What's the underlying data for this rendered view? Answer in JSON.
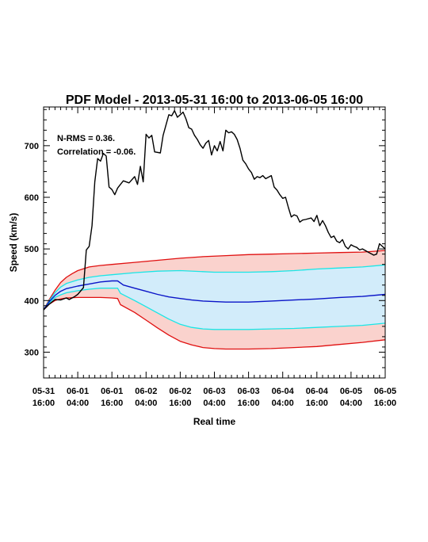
{
  "chart_data": {
    "type": "line",
    "title": "PDF Model - 2013-05-31 16:00 to 2013-06-05 16:00",
    "xlabel": "Real time",
    "ylabel": "Speed (km/s)",
    "xlim": [
      "2013-05-31 16:00",
      "2013-06-05 16:00"
    ],
    "ylim": [
      250,
      775
    ],
    "x_ticks": [
      {
        "t": "2013-05-31 16:00",
        "line1": "05-31",
        "line2": "16:00"
      },
      {
        "t": "2013-06-01 04:00",
        "line1": "06-01",
        "line2": "04:00"
      },
      {
        "t": "2013-06-01 16:00",
        "line1": "06-01",
        "line2": "16:00"
      },
      {
        "t": "2013-06-02 04:00",
        "line1": "06-02",
        "line2": "04:00"
      },
      {
        "t": "2013-06-02 16:00",
        "line1": "06-02",
        "line2": "16:00"
      },
      {
        "t": "2013-06-03 04:00",
        "line1": "06-03",
        "line2": "04:00"
      },
      {
        "t": "2013-06-03 16:00",
        "line1": "06-03",
        "line2": "16:00"
      },
      {
        "t": "2013-06-04 04:00",
        "line1": "06-04",
        "line2": "04:00"
      },
      {
        "t": "2013-06-04 16:00",
        "line1": "06-04",
        "line2": "16:00"
      },
      {
        "t": "2013-06-05 04:00",
        "line1": "06-05",
        "line2": "04:00"
      },
      {
        "t": "2013-06-05 16:00",
        "line1": "06-05",
        "line2": "16:00"
      }
    ],
    "y_ticks": [
      300,
      400,
      500,
      600,
      700
    ],
    "annotations": [
      "N-RMS = 0.36.",
      "Correlation = -0.06."
    ],
    "grid": false,
    "legend": "none",
    "colors": {
      "observed": "#000000",
      "median": "#0a14c8",
      "inner_band_line": "#19e6e6",
      "inner_band_fill": "#d2ecfa",
      "outer_band_line": "#e01010",
      "outer_band_fill": "#fad2cd"
    },
    "series": [
      {
        "key": "observed",
        "points": [
          [
            "2013-05-31 16:00",
            382
          ],
          [
            "2013-05-31 18:00",
            393
          ],
          [
            "2013-05-31 20:00",
            402
          ],
          [
            "2013-05-31 22:00",
            401
          ],
          [
            "2013-06-01 00:00",
            405
          ],
          [
            "2013-06-01 01:00",
            402
          ],
          [
            "2013-06-01 03:00",
            408
          ],
          [
            "2013-06-01 04:00",
            412
          ],
          [
            "2013-06-01 06:00",
            425
          ],
          [
            "2013-06-01 07:00",
            498
          ],
          [
            "2013-06-01 08:00",
            505
          ],
          [
            "2013-06-01 09:00",
            545
          ],
          [
            "2013-06-01 10:00",
            630
          ],
          [
            "2013-06-01 11:00",
            675
          ],
          [
            "2013-06-01 12:00",
            670
          ],
          [
            "2013-06-01 13:00",
            685
          ],
          [
            "2013-06-01 14:00",
            680
          ],
          [
            "2013-06-01 15:00",
            620
          ],
          [
            "2013-06-01 16:00",
            615
          ],
          [
            "2013-06-01 17:00",
            605
          ],
          [
            "2013-06-01 18:00",
            618
          ],
          [
            "2013-06-01 19:00",
            625
          ],
          [
            "2013-06-01 20:00",
            632
          ],
          [
            "2013-06-01 22:00",
            628
          ],
          [
            "2013-06-02 00:00",
            640
          ],
          [
            "2013-06-02 01:00",
            625
          ],
          [
            "2013-06-02 02:00",
            660
          ],
          [
            "2013-06-02 03:00",
            630
          ],
          [
            "2013-06-02 04:00",
            722
          ],
          [
            "2013-06-02 05:00",
            715
          ],
          [
            "2013-06-02 06:00",
            720
          ],
          [
            "2013-06-02 07:00",
            688
          ],
          [
            "2013-06-02 09:00",
            686
          ],
          [
            "2013-06-02 10:00",
            720
          ],
          [
            "2013-06-02 11:00",
            740
          ],
          [
            "2013-06-02 12:00",
            760
          ],
          [
            "2013-06-02 13:00",
            758
          ],
          [
            "2013-06-02 14:00",
            768
          ],
          [
            "2013-06-02 15:00",
            755
          ],
          [
            "2013-06-02 16:00",
            760
          ],
          [
            "2013-06-02 17:00",
            765
          ],
          [
            "2013-06-02 18:00",
            752
          ],
          [
            "2013-06-02 19:00",
            735
          ],
          [
            "2013-06-02 20:00",
            732
          ],
          [
            "2013-06-02 21:00",
            720
          ],
          [
            "2013-06-02 22:00",
            712
          ],
          [
            "2013-06-02 23:00",
            702
          ],
          [
            "2013-06-03 00:00",
            695
          ],
          [
            "2013-06-03 01:00",
            705
          ],
          [
            "2013-06-03 02:00",
            710
          ],
          [
            "2013-06-03 03:00",
            682
          ],
          [
            "2013-06-03 04:00",
            700
          ],
          [
            "2013-06-03 05:00",
            690
          ],
          [
            "2013-06-03 06:00",
            708
          ],
          [
            "2013-06-03 07:00",
            690
          ],
          [
            "2013-06-03 08:00",
            730
          ],
          [
            "2013-06-03 09:00",
            725
          ],
          [
            "2013-06-03 10:00",
            727
          ],
          [
            "2013-06-03 11:00",
            722
          ],
          [
            "2013-06-03 12:00",
            712
          ],
          [
            "2013-06-03 13:00",
            695
          ],
          [
            "2013-06-03 14:00",
            672
          ],
          [
            "2013-06-03 15:00",
            665
          ],
          [
            "2013-06-03 16:00",
            655
          ],
          [
            "2013-06-03 17:00",
            648
          ],
          [
            "2013-06-03 18:00",
            635
          ],
          [
            "2013-06-03 19:00",
            640
          ],
          [
            "2013-06-03 20:00",
            638
          ],
          [
            "2013-06-03 21:00",
            642
          ],
          [
            "2013-06-03 22:00",
            636
          ],
          [
            "2013-06-04 00:00",
            642
          ],
          [
            "2013-06-04 01:00",
            620
          ],
          [
            "2013-06-04 02:00",
            614
          ],
          [
            "2013-06-04 03:00",
            605
          ],
          [
            "2013-06-04 04:00",
            598
          ],
          [
            "2013-06-04 05:00",
            600
          ],
          [
            "2013-06-04 06:00",
            580
          ],
          [
            "2013-06-04 07:00",
            562
          ],
          [
            "2013-06-04 08:00",
            566
          ],
          [
            "2013-06-04 09:00",
            564
          ],
          [
            "2013-06-04 10:00",
            552
          ],
          [
            "2013-06-04 11:00",
            556
          ],
          [
            "2013-06-04 12:00",
            557
          ],
          [
            "2013-06-04 14:00",
            560
          ],
          [
            "2013-06-04 15:00",
            553
          ],
          [
            "2013-06-04 16:00",
            565
          ],
          [
            "2013-06-04 17:00",
            545
          ],
          [
            "2013-06-04 18:00",
            555
          ],
          [
            "2013-06-04 19:00",
            545
          ],
          [
            "2013-06-04 20:00",
            532
          ],
          [
            "2013-06-04 21:00",
            522
          ],
          [
            "2013-06-04 22:00",
            525
          ],
          [
            "2013-06-04 23:00",
            515
          ],
          [
            "2013-06-05 00:00",
            512
          ],
          [
            "2013-06-05 01:00",
            518
          ],
          [
            "2013-06-05 02:00",
            505
          ],
          [
            "2013-06-05 03:00",
            500
          ],
          [
            "2013-06-05 04:00",
            508
          ],
          [
            "2013-06-05 05:00",
            505
          ],
          [
            "2013-06-05 06:00",
            503
          ],
          [
            "2013-06-05 07:00",
            498
          ],
          [
            "2013-06-05 08:00",
            500
          ],
          [
            "2013-06-05 10:00",
            494
          ],
          [
            "2013-06-05 12:00",
            488
          ],
          [
            "2013-06-05 13:00",
            490
          ],
          [
            "2013-06-05 14:00",
            510
          ],
          [
            "2013-06-05 15:00",
            505
          ],
          [
            "2013-06-05 16:00",
            500
          ]
        ]
      },
      {
        "key": "median",
        "points": [
          [
            "2013-05-31 16:00",
            382
          ],
          [
            "2013-05-31 18:00",
            398
          ],
          [
            "2013-05-31 20:00",
            410
          ],
          [
            "2013-05-31 22:00",
            418
          ],
          [
            "2013-06-01 00:00",
            423
          ],
          [
            "2013-06-01 04:00",
            428
          ],
          [
            "2013-06-01 08:00",
            432
          ],
          [
            "2013-06-01 12:00",
            436
          ],
          [
            "2013-06-01 16:00",
            438
          ],
          [
            "2013-06-01 18:00",
            438
          ],
          [
            "2013-06-01 20:00",
            430
          ],
          [
            "2013-06-02 00:00",
            424
          ],
          [
            "2013-06-02 04:00",
            418
          ],
          [
            "2013-06-02 08:00",
            412
          ],
          [
            "2013-06-02 12:00",
            407
          ],
          [
            "2013-06-02 16:00",
            404
          ],
          [
            "2013-06-02 20:00",
            401
          ],
          [
            "2013-06-03 00:00",
            399
          ],
          [
            "2013-06-03 04:00",
            398
          ],
          [
            "2013-06-03 08:00",
            397
          ],
          [
            "2013-06-03 12:00",
            397
          ],
          [
            "2013-06-03 16:00",
            397
          ],
          [
            "2013-06-03 20:00",
            398
          ],
          [
            "2013-06-04 00:00",
            399
          ],
          [
            "2013-06-04 08:00",
            401
          ],
          [
            "2013-06-04 16:00",
            403
          ],
          [
            "2013-06-05 00:00",
            406
          ],
          [
            "2013-06-05 08:00",
            408
          ],
          [
            "2013-06-05 16:00",
            412
          ]
        ]
      },
      {
        "key": "inner_upper",
        "points": [
          [
            "2013-05-31 16:00",
            382
          ],
          [
            "2013-05-31 18:00",
            400
          ],
          [
            "2013-05-31 20:00",
            415
          ],
          [
            "2013-05-31 22:00",
            426
          ],
          [
            "2013-06-01 00:00",
            433
          ],
          [
            "2013-06-01 04:00",
            440
          ],
          [
            "2013-06-01 08:00",
            445
          ],
          [
            "2013-06-01 12:00",
            448
          ],
          [
            "2013-06-01 16:00",
            450
          ],
          [
            "2013-06-02 00:00",
            454
          ],
          [
            "2013-06-02 08:00",
            457
          ],
          [
            "2013-06-02 16:00",
            458
          ],
          [
            "2013-06-03 00:00",
            456
          ],
          [
            "2013-06-03 04:00",
            455
          ],
          [
            "2013-06-03 08:00",
            455
          ],
          [
            "2013-06-03 16:00",
            455
          ],
          [
            "2013-06-04 00:00",
            456
          ],
          [
            "2013-06-04 08:00",
            458
          ],
          [
            "2013-06-04 16:00",
            461
          ],
          [
            "2013-06-05 00:00",
            463
          ],
          [
            "2013-06-05 08:00",
            465
          ],
          [
            "2013-06-05 16:00",
            469
          ]
        ]
      },
      {
        "key": "inner_lower",
        "points": [
          [
            "2013-05-31 16:00",
            382
          ],
          [
            "2013-05-31 18:00",
            396
          ],
          [
            "2013-05-31 20:00",
            406
          ],
          [
            "2013-05-31 22:00",
            411
          ],
          [
            "2013-06-01 00:00",
            415
          ],
          [
            "2013-06-01 04:00",
            419
          ],
          [
            "2013-06-01 08:00",
            422
          ],
          [
            "2013-06-01 12:00",
            424
          ],
          [
            "2013-06-01 16:00",
            424
          ],
          [
            "2013-06-01 18:00",
            424
          ],
          [
            "2013-06-01 19:00",
            414
          ],
          [
            "2013-06-02 00:00",
            400
          ],
          [
            "2013-06-02 04:00",
            388
          ],
          [
            "2013-06-02 08:00",
            376
          ],
          [
            "2013-06-02 12:00",
            364
          ],
          [
            "2013-06-02 16:00",
            354
          ],
          [
            "2013-06-02 20:00",
            348
          ],
          [
            "2013-06-03 00:00",
            345
          ],
          [
            "2013-06-03 04:00",
            344
          ],
          [
            "2013-06-03 08:00",
            344
          ],
          [
            "2013-06-03 16:00",
            344
          ],
          [
            "2013-06-04 00:00",
            345
          ],
          [
            "2013-06-04 08:00",
            346
          ],
          [
            "2013-06-04 16:00",
            348
          ],
          [
            "2013-06-05 00:00",
            350
          ],
          [
            "2013-06-05 08:00",
            352
          ],
          [
            "2013-06-05 16:00",
            356
          ]
        ]
      },
      {
        "key": "outer_upper",
        "points": [
          [
            "2013-05-31 16:00",
            382
          ],
          [
            "2013-05-31 18:00",
            402
          ],
          [
            "2013-05-31 20:00",
            420
          ],
          [
            "2013-05-31 22:00",
            435
          ],
          [
            "2013-06-01 00:00",
            445
          ],
          [
            "2013-06-01 02:00",
            452
          ],
          [
            "2013-06-01 04:00",
            458
          ],
          [
            "2013-06-01 08:00",
            465
          ],
          [
            "2013-06-01 12:00",
            468
          ],
          [
            "2013-06-01 16:00",
            470
          ],
          [
            "2013-06-02 00:00",
            474
          ],
          [
            "2013-06-02 08:00",
            478
          ],
          [
            "2013-06-02 16:00",
            482
          ],
          [
            "2013-06-03 00:00",
            485
          ],
          [
            "2013-06-03 08:00",
            487
          ],
          [
            "2013-06-03 16:00",
            489
          ],
          [
            "2013-06-04 00:00",
            490
          ],
          [
            "2013-06-04 08:00",
            491
          ],
          [
            "2013-06-04 16:00",
            492
          ],
          [
            "2013-06-05 00:00",
            493
          ],
          [
            "2013-06-05 08:00",
            494
          ],
          [
            "2013-06-05 16:00",
            497
          ]
        ]
      },
      {
        "key": "outer_lower",
        "points": [
          [
            "2013-05-31 16:00",
            382
          ],
          [
            "2013-05-31 18:00",
            393
          ],
          [
            "2013-05-31 20:00",
            400
          ],
          [
            "2013-05-31 22:00",
            403
          ],
          [
            "2013-06-01 00:00",
            405
          ],
          [
            "2013-06-01 04:00",
            406
          ],
          [
            "2013-06-01 08:00",
            406
          ],
          [
            "2013-06-01 12:00",
            406
          ],
          [
            "2013-06-01 16:00",
            405
          ],
          [
            "2013-06-01 18:00",
            404
          ],
          [
            "2013-06-01 19:00",
            392
          ],
          [
            "2013-06-02 00:00",
            377
          ],
          [
            "2013-06-02 04:00",
            362
          ],
          [
            "2013-06-02 08:00",
            347
          ],
          [
            "2013-06-02 12:00",
            333
          ],
          [
            "2013-06-02 16:00",
            321
          ],
          [
            "2013-06-02 20:00",
            314
          ],
          [
            "2013-06-03 00:00",
            309
          ],
          [
            "2013-06-03 04:00",
            307
          ],
          [
            "2013-06-03 08:00",
            306
          ],
          [
            "2013-06-03 16:00",
            306
          ],
          [
            "2013-06-04 00:00",
            307
          ],
          [
            "2013-06-04 08:00",
            309
          ],
          [
            "2013-06-04 16:00",
            311
          ],
          [
            "2013-06-05 00:00",
            315
          ],
          [
            "2013-06-05 08:00",
            319
          ],
          [
            "2013-06-05 16:00",
            324
          ]
        ]
      }
    ]
  }
}
